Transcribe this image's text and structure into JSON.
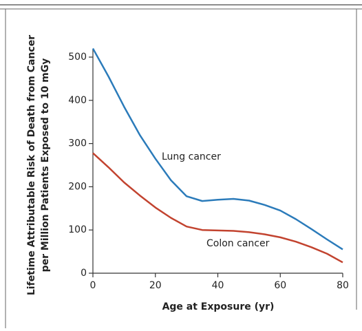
{
  "chart_data": {
    "type": "line",
    "x_label": "Age at Exposure (yr)",
    "y_label": [
      "Lifetime Attributable Risk of Death from Cancer",
      "per Million Patients Exposed to 10 mGy"
    ],
    "x": [
      0,
      5,
      10,
      15,
      20,
      25,
      30,
      35,
      40,
      45,
      50,
      55,
      60,
      65,
      70,
      75,
      80
    ],
    "series": [
      {
        "name": "Lung cancer",
        "color": "#2b7bba",
        "values": [
          520,
          455,
          385,
          320,
          265,
          215,
          178,
          167,
          170,
          172,
          168,
          158,
          145,
          125,
          102,
          78,
          55
        ]
      },
      {
        "name": "Colon cancer",
        "color": "#c2432f",
        "values": [
          278,
          245,
          210,
          180,
          152,
          128,
          108,
          100,
          99,
          98,
          95,
          90,
          83,
          73,
          60,
          45,
          25
        ]
      }
    ],
    "xlim": [
      0,
      80
    ],
    "xticks": [
      0,
      20,
      40,
      60,
      80
    ],
    "ylim": [
      0,
      500
    ],
    "yticks": [
      0,
      100,
      200,
      300,
      400,
      500
    ]
  }
}
